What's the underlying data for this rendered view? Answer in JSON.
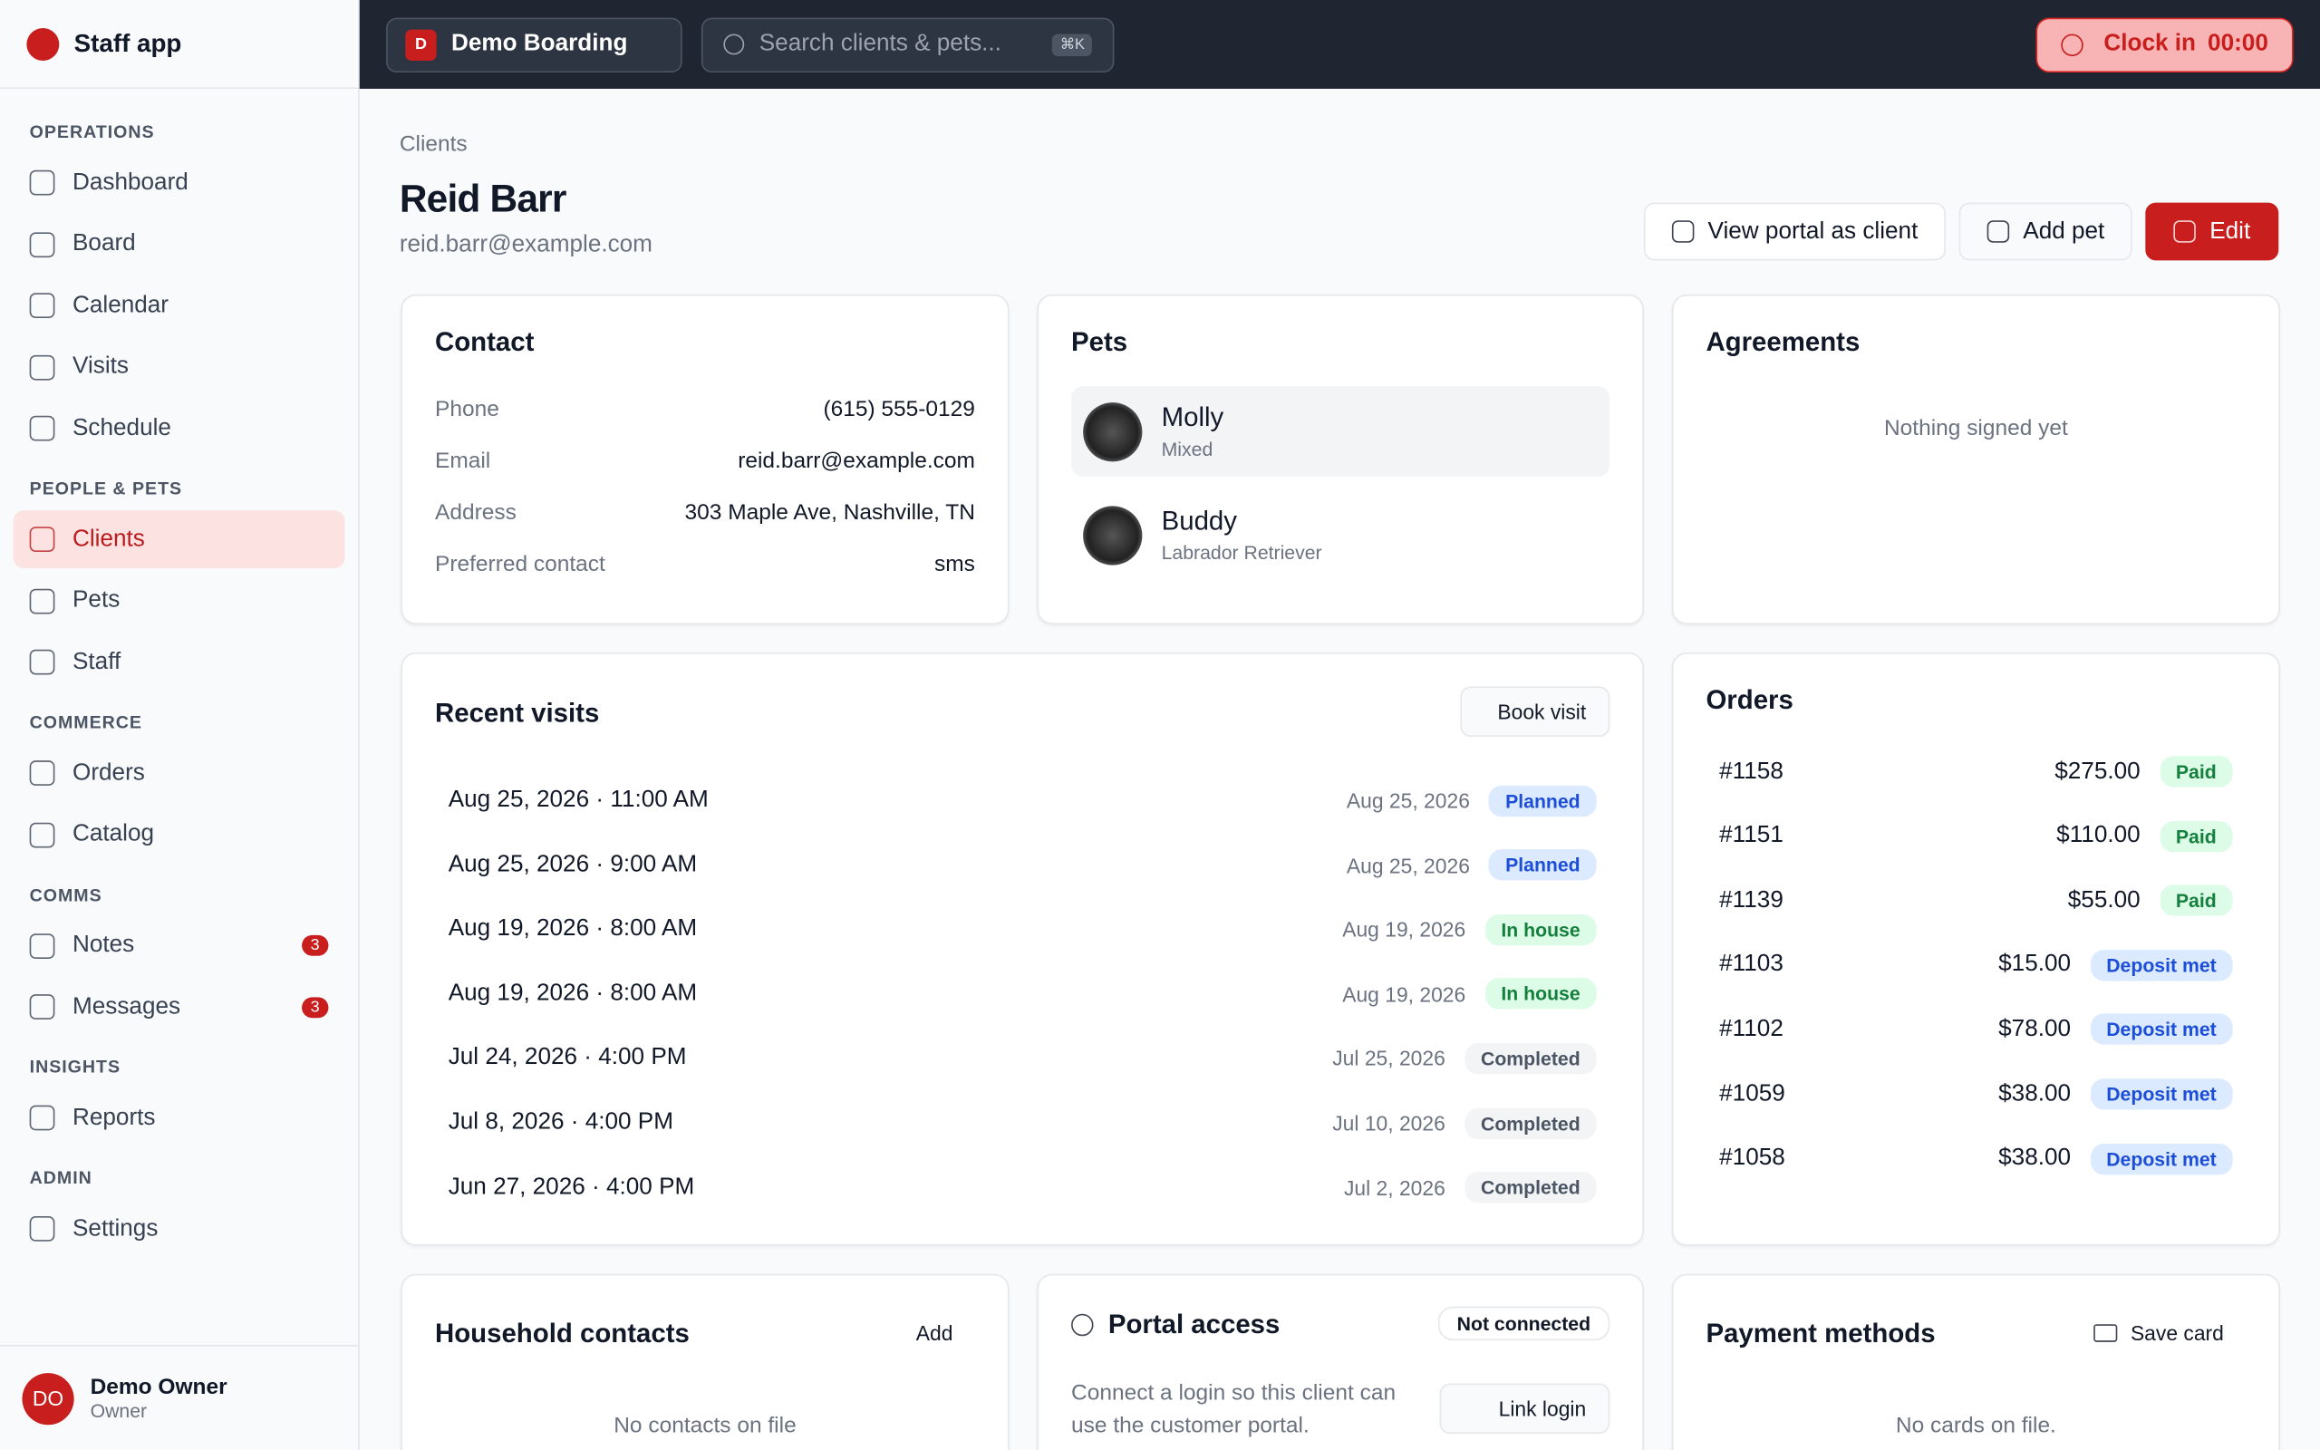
{
  "sidebar": {
    "brand": "Staff app",
    "sections": [
      {
        "title": "OPERATIONS",
        "items": [
          {
            "label": "Dashboard"
          },
          {
            "label": "Board"
          },
          {
            "label": "Calendar"
          },
          {
            "label": "Visits"
          },
          {
            "label": "Schedule"
          }
        ]
      },
      {
        "title": "PEOPLE & PETS",
        "items": [
          {
            "label": "Clients",
            "active": true
          },
          {
            "label": "Pets"
          },
          {
            "label": "Staff"
          }
        ]
      },
      {
        "title": "COMMERCE",
        "items": [
          {
            "label": "Orders"
          },
          {
            "label": "Catalog"
          }
        ]
      },
      {
        "title": "COMMS",
        "items": [
          {
            "label": "Notes",
            "badge": 3
          },
          {
            "label": "Messages",
            "badge": 3
          }
        ]
      },
      {
        "title": "INSIGHTS",
        "items": [
          {
            "label": "Reports"
          }
        ]
      },
      {
        "title": "ADMIN",
        "items": [
          {
            "label": "Settings"
          }
        ]
      }
    ],
    "user": {
      "initials": "DO",
      "name": "Demo Owner",
      "role": "Owner"
    }
  },
  "topbar": {
    "org_initial": "D",
    "org": "Demo Boarding",
    "search": "Search clients & pets...",
    "shortcut": "⌘K",
    "clock_label": "Clock in",
    "clock_time": "00:00"
  },
  "header": {
    "breadcrumb": "Clients",
    "name": "Reid Barr",
    "email": "reid.barr@example.com",
    "actions": [
      "View portal as client",
      "Add pet",
      "Edit"
    ]
  },
  "contact": {
    "title": "Contact",
    "rows": [
      [
        "Phone",
        "(615) 555-0129"
      ],
      [
        "Email",
        "reid.barr@example.com"
      ],
      [
        "Address",
        "303 Maple Ave, Nashville, TN"
      ],
      [
        "Preferred contact",
        "sms"
      ]
    ]
  },
  "pets": {
    "title": "Pets",
    "items": [
      {
        "name": "Molly",
        "breed": "Mixed"
      },
      {
        "name": "Buddy",
        "breed": "Labrador Retriever"
      }
    ]
  },
  "agreements": {
    "title": "Agreements",
    "empty": "Nothing signed yet"
  },
  "visits": {
    "title": "Recent visits",
    "action": "Book visit",
    "rows": [
      {
        "start": "Aug 25, 2026 · 11:00 AM",
        "end": "Aug 25, 2026",
        "status": "Planned",
        "color": "#1d4ed8",
        "bg": "#dbeafe"
      },
      {
        "start": "Aug 25, 2026 · 9:00 AM",
        "end": "Aug 25, 2026",
        "status": "Planned",
        "color": "#1d4ed8",
        "bg": "#dbeafe"
      },
      {
        "start": "Aug 19, 2026 · 8:00 AM",
        "end": "Aug 19, 2026",
        "status": "In house",
        "color": "#15803d",
        "bg": "#dcfce7"
      },
      {
        "start": "Aug 19, 2026 · 8:00 AM",
        "end": "Aug 19, 2026",
        "status": "In house",
        "color": "#15803d",
        "bg": "#dcfce7"
      },
      {
        "start": "Jul 24, 2026 · 4:00 PM",
        "end": "Jul 25, 2026",
        "status": "Completed",
        "color": "#4b5563",
        "bg": "#f3f4f6"
      },
      {
        "start": "Jul 8, 2026 · 4:00 PM",
        "end": "Jul 10, 2026",
        "status": "Completed",
        "color": "#4b5563",
        "bg": "#f3f4f6"
      },
      {
        "start": "Jun 27, 2026 · 4:00 PM",
        "end": "Jul 2, 2026",
        "status": "Completed",
        "color": "#4b5563",
        "bg": "#f3f4f6"
      }
    ]
  },
  "orders": {
    "title": "Orders",
    "rows": [
      {
        "id": "#1158",
        "amount": "$275.00",
        "status": "Paid",
        "color": "#15803d",
        "bg": "#dcfce7"
      },
      {
        "id": "#1151",
        "amount": "$110.00",
        "status": "Paid",
        "color": "#15803d",
        "bg": "#dcfce7"
      },
      {
        "id": "#1139",
        "amount": "$55.00",
        "status": "Paid",
        "color": "#15803d",
        "bg": "#dcfce7"
      },
      {
        "id": "#1103",
        "amount": "$15.00",
        "status": "Deposit met",
        "color": "#1d4ed8",
        "bg": "#dbeafe"
      },
      {
        "id": "#1102",
        "amount": "$78.00",
        "status": "Deposit met",
        "color": "#1d4ed8",
        "bg": "#dbeafe"
      },
      {
        "id": "#1059",
        "amount": "$38.00",
        "status": "Deposit met",
        "color": "#1d4ed8",
        "bg": "#dbeafe"
      },
      {
        "id": "#1058",
        "amount": "$38.00",
        "status": "Deposit met",
        "color": "#1d4ed8",
        "bg": "#dbeafe"
      }
    ]
  },
  "household": {
    "title": "Household contacts",
    "action": "Add",
    "empty": "No contacts on file"
  },
  "portal": {
    "title": "Portal access",
    "status": "Not connected",
    "text": "Connect a login so this client can use the customer portal.",
    "action": "Link login"
  },
  "payment": {
    "title": "Payment methods",
    "action": "Save card",
    "empty": "No cards on file."
  }
}
